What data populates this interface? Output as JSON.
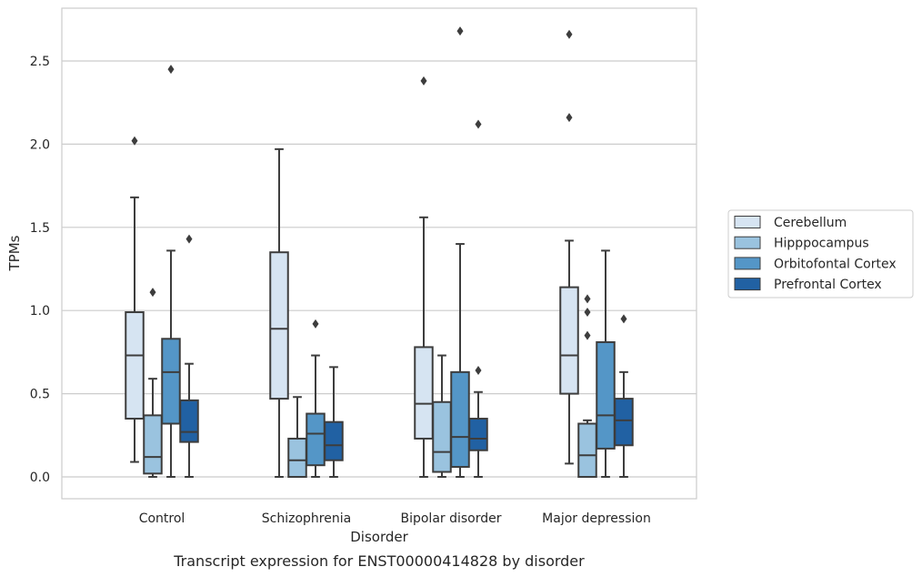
{
  "caption": "Transcript expression for ENST00000414828 by disorder",
  "chart_data": {
    "type": "boxplot",
    "xlabel": "Disorder",
    "ylabel": "TPMs",
    "ylim": [
      -0.13,
      2.82
    ],
    "yticks": [
      "0.0",
      "0.5",
      "1.0",
      "1.5",
      "2.0",
      "2.5"
    ],
    "grid": "horizontal",
    "legend_position": "right",
    "categories": [
      "Control",
      "Schizophrenia",
      "Bipolar disorder",
      "Major depression"
    ],
    "series": [
      {
        "name": "Cerebellum",
        "color": "#d6e4f2",
        "boxes": [
          {
            "whislo": 0.09,
            "q1": 0.35,
            "med": 0.73,
            "q3": 0.99,
            "whishi": 1.68,
            "fliers": [
              2.02
            ]
          },
          {
            "whislo": 0.0,
            "q1": 0.47,
            "med": 0.89,
            "q3": 1.35,
            "whishi": 1.97,
            "fliers": []
          },
          {
            "whislo": 0.0,
            "q1": 0.23,
            "med": 0.44,
            "q3": 0.78,
            "whishi": 1.56,
            "fliers": [
              2.38
            ]
          },
          {
            "whislo": 0.08,
            "q1": 0.5,
            "med": 0.73,
            "q3": 1.14,
            "whishi": 1.42,
            "fliers": [
              2.16,
              2.66
            ]
          }
        ]
      },
      {
        "name": "Hipppocampus",
        "color": "#9ac3df",
        "boxes": [
          {
            "whislo": 0.0,
            "q1": 0.02,
            "med": 0.12,
            "q3": 0.37,
            "whishi": 0.59,
            "fliers": [
              1.11
            ]
          },
          {
            "whislo": 0.0,
            "q1": 0.0,
            "med": 0.1,
            "q3": 0.23,
            "whishi": 0.48,
            "fliers": []
          },
          {
            "whislo": 0.0,
            "q1": 0.03,
            "med": 0.15,
            "q3": 0.45,
            "whishi": 0.73,
            "fliers": []
          },
          {
            "whislo": 0.0,
            "q1": 0.0,
            "med": 0.13,
            "q3": 0.32,
            "whishi": 0.34,
            "fliers": [
              0.85,
              0.99,
              1.07
            ]
          }
        ]
      },
      {
        "name": "Orbitofontal Cortex",
        "color": "#5496c7",
        "boxes": [
          {
            "whislo": 0.0,
            "q1": 0.32,
            "med": 0.63,
            "q3": 0.83,
            "whishi": 1.36,
            "fliers": [
              2.45
            ]
          },
          {
            "whislo": 0.0,
            "q1": 0.07,
            "med": 0.26,
            "q3": 0.38,
            "whishi": 0.73,
            "fliers": [
              0.92
            ]
          },
          {
            "whislo": 0.0,
            "q1": 0.06,
            "med": 0.24,
            "q3": 0.63,
            "whishi": 1.4,
            "fliers": [
              2.68
            ]
          },
          {
            "whislo": 0.0,
            "q1": 0.17,
            "med": 0.37,
            "q3": 0.81,
            "whishi": 1.36,
            "fliers": []
          }
        ]
      },
      {
        "name": "Prefrontal Cortex",
        "color": "#2161a3",
        "boxes": [
          {
            "whislo": 0.0,
            "q1": 0.21,
            "med": 0.27,
            "q3": 0.46,
            "whishi": 0.68,
            "fliers": [
              1.43
            ]
          },
          {
            "whislo": 0.0,
            "q1": 0.1,
            "med": 0.19,
            "q3": 0.33,
            "whishi": 0.66,
            "fliers": []
          },
          {
            "whislo": 0.0,
            "q1": 0.16,
            "med": 0.23,
            "q3": 0.35,
            "whishi": 0.51,
            "fliers": [
              0.64,
              2.12
            ]
          },
          {
            "whislo": 0.0,
            "q1": 0.19,
            "med": 0.34,
            "q3": 0.47,
            "whishi": 0.63,
            "fliers": [
              0.95
            ]
          }
        ]
      }
    ]
  }
}
